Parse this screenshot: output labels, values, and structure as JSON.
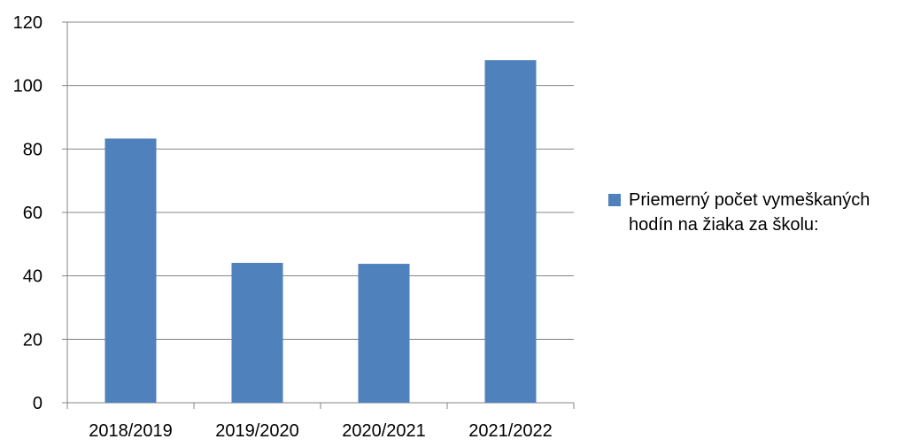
{
  "chart_data": {
    "type": "bar",
    "title": "",
    "xlabel": "",
    "ylabel": "",
    "categories": [
      "2018/2019",
      "2019/2020",
      "2020/2021",
      "2021/2022"
    ],
    "series": [
      {
        "name": "Priemerný počet vymeškaných hodín na žiaka za školu:",
        "values": [
          83.3,
          44.1,
          43.8,
          108.0
        ],
        "color": "#4F81BD"
      }
    ],
    "ylim": [
      0,
      120
    ],
    "yticks": [
      "0",
      "20",
      "40",
      "60",
      "80",
      "100",
      "120"
    ],
    "grid": true,
    "legend_position": "right"
  }
}
